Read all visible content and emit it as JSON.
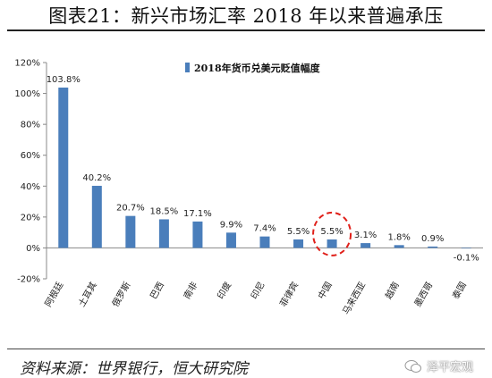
{
  "figure_title": "图表21：新兴市场汇率 2018 年以来普遍承压",
  "source": "资料来源：世界银行，恒大研究院",
  "watermark": "泽平宏观",
  "colors": {
    "bar": "#4a7ebb",
    "highlight": "#e0201a",
    "axis": "#888888"
  },
  "chart_data": {
    "type": "bar",
    "title": "",
    "xlabel": "",
    "ylabel": "",
    "legend": {
      "label": "2018年货币兑美元贬值幅度",
      "position": "top"
    },
    "categories": [
      "阿根廷",
      "土耳其",
      "俄罗斯",
      "巴西",
      "南非",
      "印度",
      "印尼",
      "菲律宾",
      "中国",
      "马来西亚",
      "越南",
      "墨西哥",
      "泰国"
    ],
    "values": [
      103.8,
      40.2,
      20.7,
      18.5,
      17.1,
      9.9,
      7.4,
      5.5,
      5.5,
      3.1,
      1.8,
      0.9,
      -0.1
    ],
    "value_labels": [
      "103.8%",
      "40.2%",
      "20.7%",
      "18.5%",
      "17.1%",
      "9.9%",
      "7.4%",
      "5.5%",
      "5.5%",
      "3.1%",
      "1.8%",
      "0.9%",
      "-0.1%"
    ],
    "ylim": [
      -20,
      120
    ],
    "yticks": [
      -20,
      0,
      20,
      40,
      60,
      80,
      100,
      120
    ],
    "ytick_labels": [
      "-20%",
      "0%",
      "20%",
      "40%",
      "60%",
      "80%",
      "100%",
      "120%"
    ],
    "highlight_category": "中国",
    "grid": false
  }
}
